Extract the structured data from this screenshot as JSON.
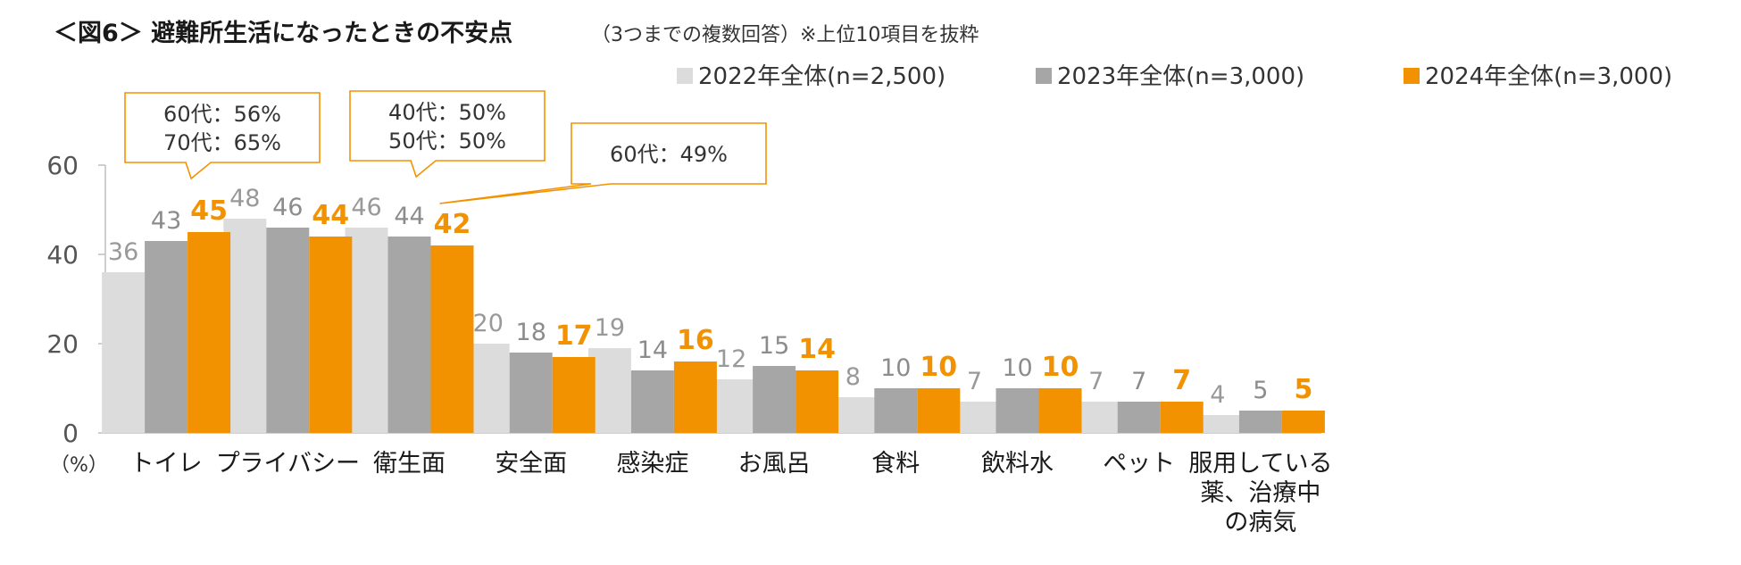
{
  "title": "＜図6＞ 避難所生活になったときの不安点",
  "subtitle": "（3つまでの複数回答）※上位10項目を抜粋",
  "unit_label": "（%）",
  "colors": {
    "s2022": "#dcdcdc",
    "s2023": "#a6a6a6",
    "s2024": "#f39200",
    "label2022": "#999999",
    "label2023": "#8c8c8c",
    "label2024": "#f39200",
    "axis": "#bfbfbf",
    "callout_border": "#f39200"
  },
  "chart_data": {
    "type": "bar",
    "ylim": [
      0,
      60
    ],
    "yticks": [
      0,
      20,
      40,
      60
    ],
    "grid": false,
    "legend_position": "top-right",
    "categories": [
      [
        "トイレ"
      ],
      [
        "プライバシー"
      ],
      [
        "衛生面"
      ],
      [
        "安全面"
      ],
      [
        "感染症"
      ],
      [
        "お風呂"
      ],
      [
        "食料"
      ],
      [
        "飲料水"
      ],
      [
        "ペット"
      ],
      [
        "服用している",
        "薬、治療中",
        "の病気"
      ]
    ],
    "series": [
      {
        "name": "2022年全体(n=2,500)",
        "color_key": "s2022",
        "label_color_key": "label2022",
        "bold": false,
        "values": [
          36,
          48,
          46,
          20,
          19,
          12,
          8,
          7,
          7,
          4
        ]
      },
      {
        "name": "2023年全体(n=3,000)",
        "color_key": "s2023",
        "label_color_key": "label2023",
        "bold": false,
        "values": [
          43,
          46,
          44,
          18,
          14,
          15,
          10,
          10,
          7,
          5
        ]
      },
      {
        "name": "2024年全体(n=3,000)",
        "color_key": "s2024",
        "label_color_key": "label2024",
        "bold": true,
        "values": [
          45,
          44,
          42,
          17,
          16,
          14,
          10,
          10,
          7,
          5
        ]
      }
    ],
    "annotations": [
      {
        "lines": [
          "60代：56%",
          "70代：65%"
        ],
        "category": 0
      },
      {
        "lines": [
          "40代：50%",
          "50代：50%"
        ],
        "category": 1
      },
      {
        "lines": [
          "60代：49%"
        ],
        "category": 2
      }
    ]
  }
}
